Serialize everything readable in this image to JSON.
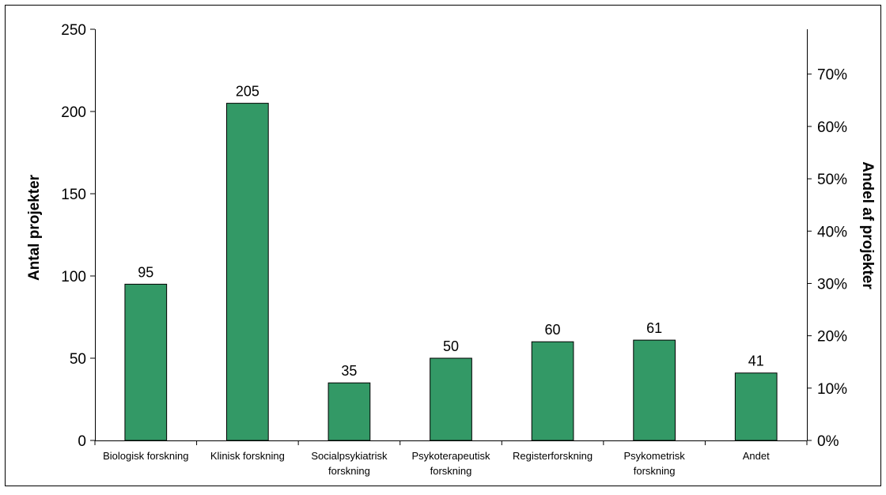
{
  "chart_data": {
    "type": "bar",
    "categories": [
      [
        "Biologisk forskning"
      ],
      [
        "Klinisk forskning"
      ],
      [
        "Socialpsykiatrisk",
        "forskning"
      ],
      [
        "Psykoterapeutisk",
        "forskning"
      ],
      [
        "Registerforskning"
      ],
      [
        "Psykometrisk",
        "forskning"
      ],
      [
        "Andet"
      ]
    ],
    "values": [
      95,
      205,
      35,
      50,
      60,
      61,
      41
    ],
    "data_labels": [
      "95",
      "205",
      "35",
      "50",
      "60",
      "61",
      "41"
    ],
    "ylabel": "Antal projekter",
    "y2label": "Andel af projekter",
    "ylim": [
      0,
      250
    ],
    "y_ticks": [
      0,
      50,
      100,
      150,
      200,
      250
    ],
    "y2_ticks": [
      0,
      0.1,
      0.2,
      0.3,
      0.4,
      0.5,
      0.6,
      0.7
    ],
    "y2_tick_labels": [
      "0%",
      "10%",
      "20%",
      "30%",
      "40%",
      "50%",
      "60%",
      "70%"
    ],
    "y2lim": [
      0,
      0.7857
    ],
    "grid": false,
    "legend": "none",
    "colors": {
      "bar": "#339966",
      "bar_stroke": "#000000",
      "axis": "#000000",
      "frame": "#000000"
    }
  }
}
